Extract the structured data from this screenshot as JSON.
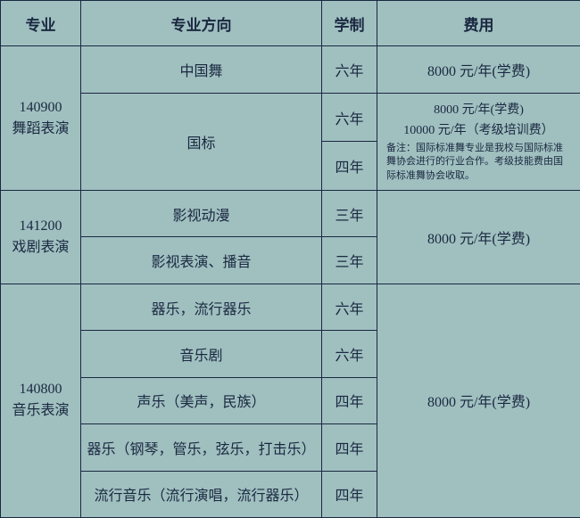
{
  "colors": {
    "background": "#a0c0c0",
    "border": "#1a2840",
    "text": "#1a2840"
  },
  "header": {
    "major": "专业",
    "direction": "专业方向",
    "duration": "学制",
    "fee": "费用"
  },
  "rows": [
    {
      "major_code": "140900",
      "major_name": "舞蹈表演",
      "subs": [
        {
          "direction": "中国舞",
          "duration": "六年",
          "fee": "8000 元/年(学费)"
        },
        {
          "direction": "国标",
          "duration": "六年",
          "fee_top1": "8000 元/年(学费)",
          "fee_top2": "10000 元/年（考级培训费）",
          "fee_note": "备注：国际标准舞专业是我校与国际标准舞协会进行的行业合作。考级技能费由国际标准舞协会收取。"
        },
        {
          "direction": "",
          "duration": "四年"
        }
      ]
    },
    {
      "major_code": "141200",
      "major_name": "戏剧表演",
      "subs": [
        {
          "direction": "影视动漫",
          "duration": "三年",
          "fee": "8000 元/年(学费)"
        },
        {
          "direction": "影视表演、播音",
          "duration": "三年"
        }
      ]
    },
    {
      "major_code": "140800",
      "major_name": "音乐表演",
      "subs": [
        {
          "direction": "器乐，流行器乐",
          "duration": "六年",
          "fee": "8000 元/年(学费)"
        },
        {
          "direction": "音乐剧",
          "duration": "六年"
        },
        {
          "direction": "声乐（美声，民族）",
          "duration": "四年"
        },
        {
          "direction": "器乐（钢琴，管乐，弦乐，打击乐）",
          "duration": "四年"
        },
        {
          "direction": "流行音乐（流行演唱，流行器乐）",
          "duration": "四年"
        }
      ]
    }
  ]
}
